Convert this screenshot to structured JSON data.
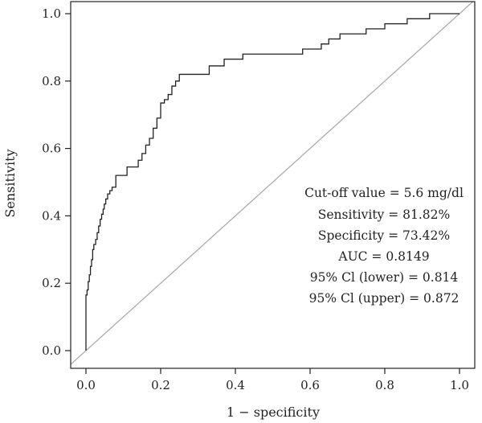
{
  "chart_data": {
    "type": "line",
    "title": "",
    "xlabel": "1 − specificity",
    "ylabel": "Sensitivity",
    "xlim": [
      -0.04,
      1.04
    ],
    "ylim": [
      0.0,
      1.0
    ],
    "xticks": [
      0.0,
      0.2,
      0.4,
      0.6,
      0.8,
      1.0
    ],
    "yticks": [
      0.0,
      0.2,
      0.4,
      0.6,
      0.8,
      1.0
    ],
    "xtick_labels": [
      "0.0",
      "0.2",
      "0.4",
      "0.6",
      "0.8",
      "1.0"
    ],
    "ytick_labels": [
      "0.0",
      "0.2",
      "0.4",
      "0.6",
      "0.8",
      "1.0"
    ],
    "grid": false,
    "series": [
      {
        "role": "roc-curve",
        "color": "#222222",
        "x": [
          0.0,
          0.0,
          0.003,
          0.003,
          0.006,
          0.006,
          0.009,
          0.009,
          0.012,
          0.012,
          0.015,
          0.015,
          0.018,
          0.018,
          0.021,
          0.021,
          0.026,
          0.026,
          0.03,
          0.03,
          0.034,
          0.034,
          0.038,
          0.038,
          0.042,
          0.042,
          0.046,
          0.046,
          0.049,
          0.049,
          0.053,
          0.053,
          0.058,
          0.058,
          0.064,
          0.064,
          0.07,
          0.07,
          0.08,
          0.08,
          0.11,
          0.11,
          0.14,
          0.14,
          0.15,
          0.15,
          0.16,
          0.16,
          0.17,
          0.17,
          0.18,
          0.18,
          0.19,
          0.19,
          0.2,
          0.2,
          0.21,
          0.21,
          0.22,
          0.22,
          0.23,
          0.23,
          0.24,
          0.24,
          0.25,
          0.25,
          0.33,
          0.33,
          0.37,
          0.37,
          0.42,
          0.42,
          0.58,
          0.58,
          0.63,
          0.63,
          0.65,
          0.65,
          0.68,
          0.68,
          0.75,
          0.75,
          0.8,
          0.8,
          0.86,
          0.86,
          0.92,
          0.92,
          1.0
        ],
        "y": [
          0.0,
          0.165,
          0.165,
          0.18,
          0.18,
          0.205,
          0.205,
          0.225,
          0.225,
          0.25,
          0.25,
          0.27,
          0.27,
          0.3,
          0.3,
          0.315,
          0.315,
          0.33,
          0.33,
          0.35,
          0.35,
          0.37,
          0.37,
          0.39,
          0.39,
          0.405,
          0.405,
          0.42,
          0.42,
          0.435,
          0.435,
          0.45,
          0.45,
          0.465,
          0.465,
          0.475,
          0.475,
          0.485,
          0.485,
          0.52,
          0.52,
          0.545,
          0.545,
          0.565,
          0.565,
          0.585,
          0.585,
          0.61,
          0.61,
          0.63,
          0.63,
          0.66,
          0.66,
          0.69,
          0.69,
          0.735,
          0.735,
          0.745,
          0.745,
          0.76,
          0.76,
          0.785,
          0.785,
          0.8,
          0.8,
          0.82,
          0.82,
          0.845,
          0.845,
          0.865,
          0.865,
          0.88,
          0.88,
          0.895,
          0.895,
          0.91,
          0.91,
          0.925,
          0.925,
          0.94,
          0.94,
          0.955,
          0.955,
          0.97,
          0.97,
          0.985,
          0.985,
          1.0,
          1.0
        ]
      },
      {
        "role": "reference-diagonal",
        "color": "#a6a6a6",
        "x": [
          -0.04,
          1.04
        ],
        "y": [
          -0.04,
          1.04
        ]
      }
    ],
    "annotations": [
      "Cut-off value = 5.6 mg/dl",
      "Sensitivity = 81.82%",
      "Specificity = 73.42%",
      "AUC = 0.8149",
      "95% Cl (lower) = 0.814",
      "95% Cl (upper) = 0.872"
    ]
  }
}
